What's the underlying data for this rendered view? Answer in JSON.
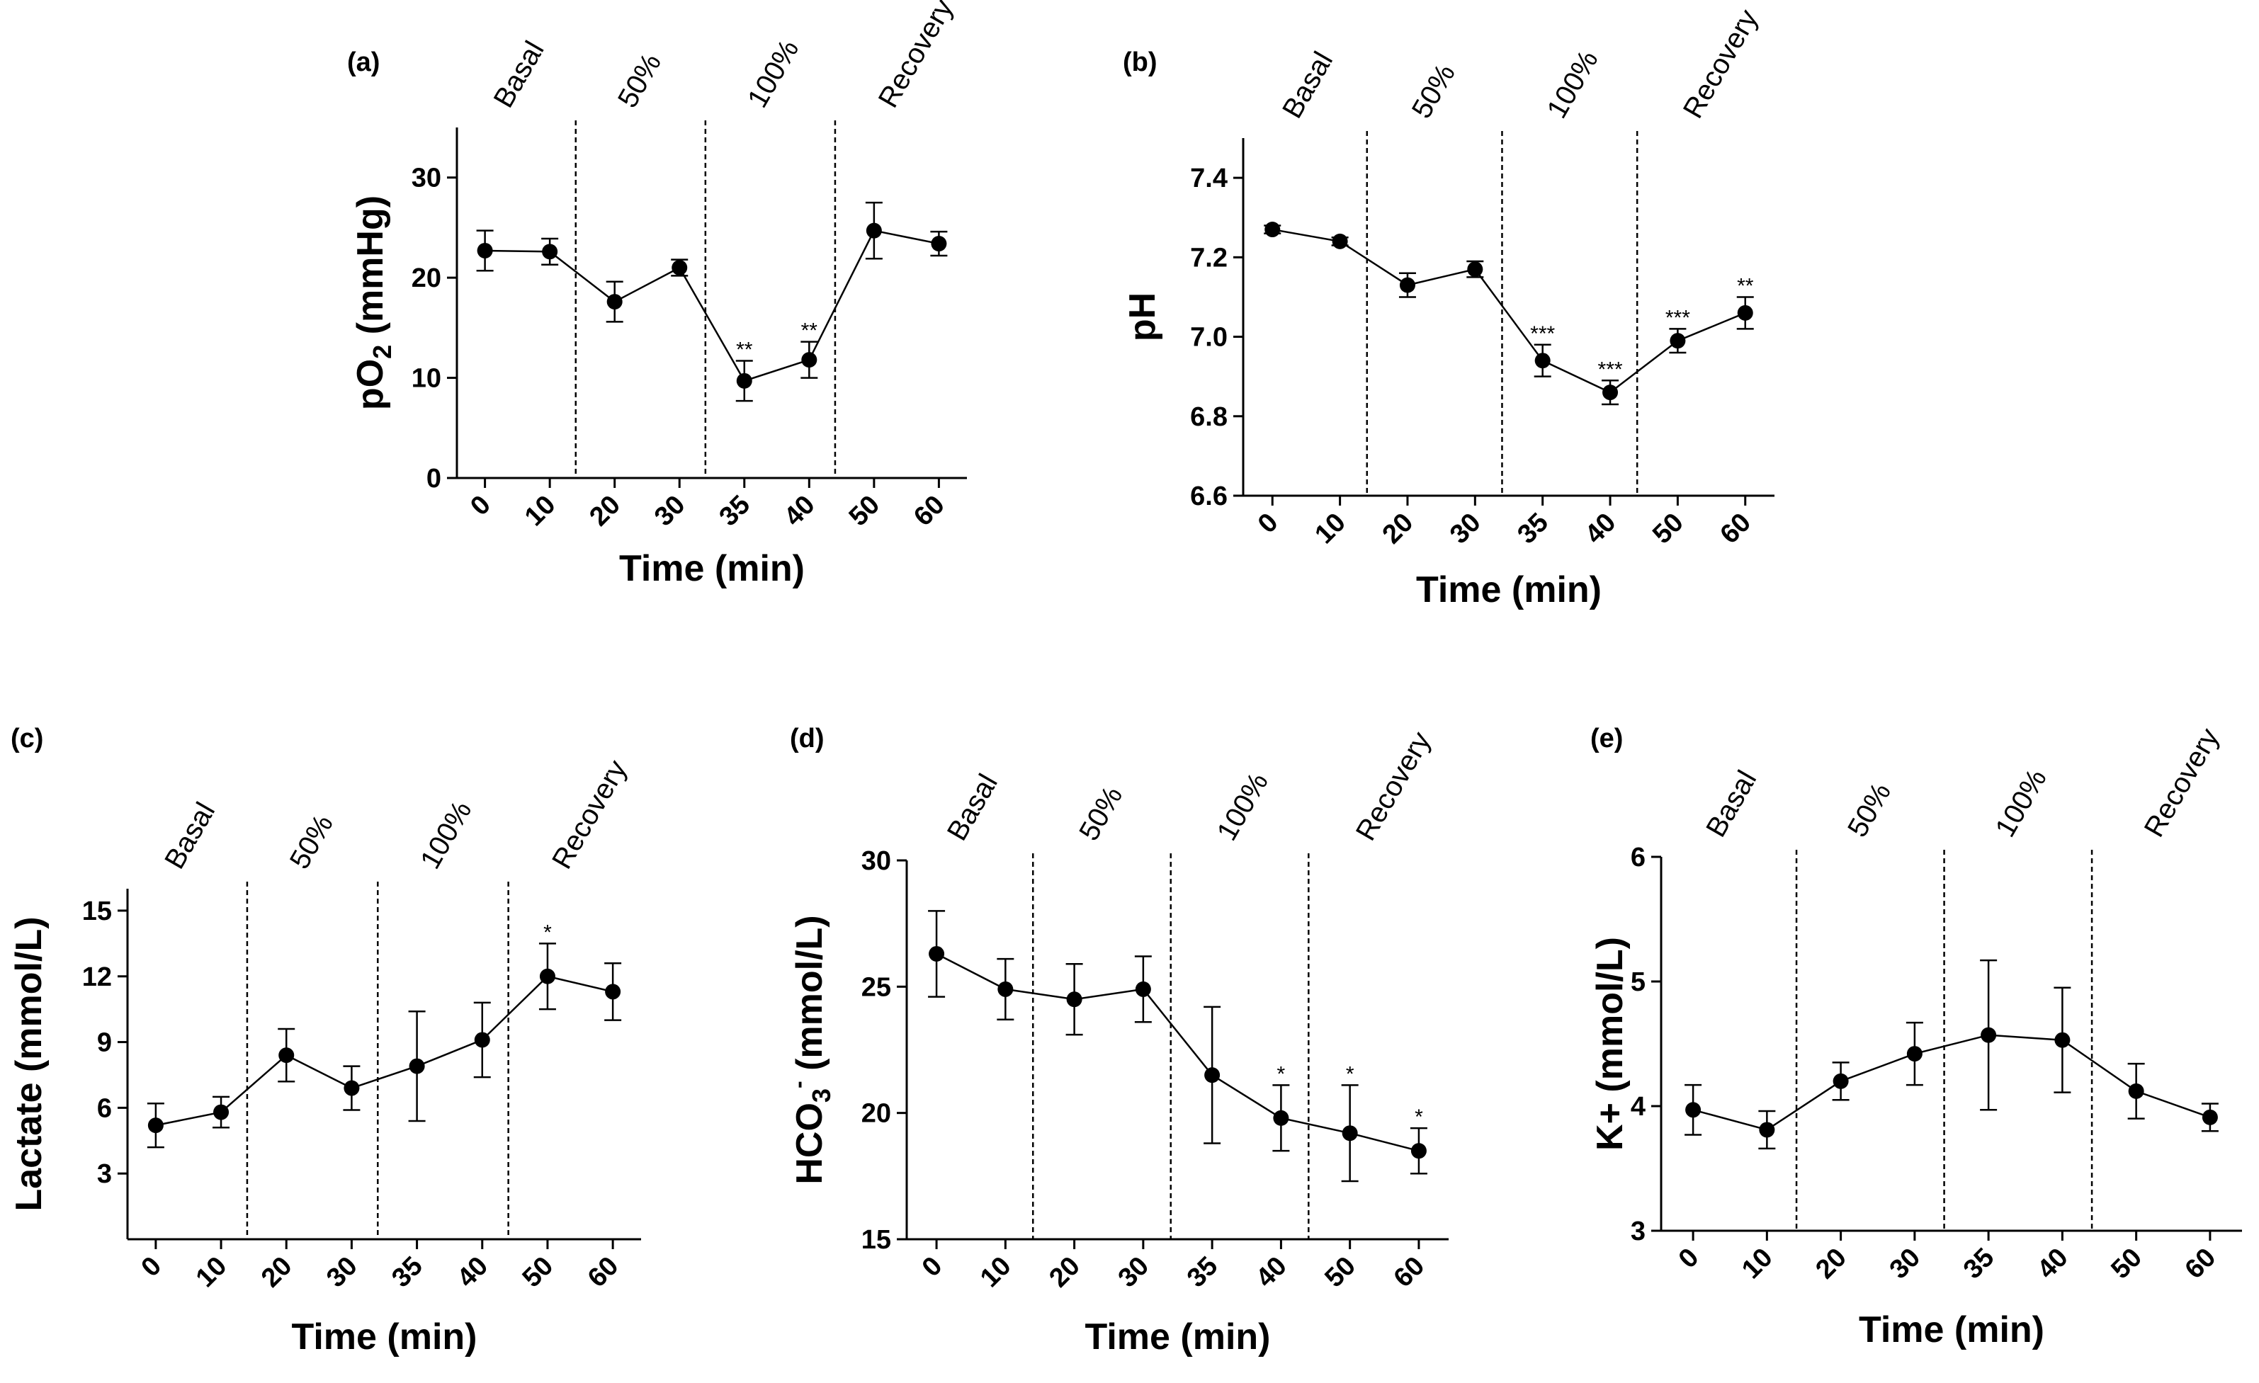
{
  "chart_data": [
    {
      "id": "a",
      "type": "line",
      "panel_label": "(a)",
      "title": "",
      "xlabel": "Time (min)",
      "ylabel_main": "pO",
      "ylabel_sub": "2",
      "ylabel_rest": " (mmHg)",
      "ylim": [
        0,
        35
      ],
      "yticks": [
        0,
        10,
        20,
        30
      ],
      "categories": [
        "0",
        "10",
        "20",
        "30",
        "35",
        "40",
        "50",
        "60"
      ],
      "values": [
        22.7,
        22.6,
        17.6,
        21.0,
        9.7,
        11.8,
        24.7,
        23.4
      ],
      "errors": [
        2.0,
        1.3,
        2.0,
        0.8,
        2.0,
        1.8,
        2.8,
        1.2
      ],
      "significance": [
        "",
        "",
        "",
        "",
        "**",
        "**",
        "",
        ""
      ],
      "phases": [
        "Basal",
        "50%",
        "100%",
        "Recovery"
      ],
      "grid": false
    },
    {
      "id": "b",
      "type": "line",
      "panel_label": "(b)",
      "title": "",
      "xlabel": "Time (min)",
      "ylabel_main": "pH",
      "ylabel_sub": "",
      "ylabel_rest": "",
      "ylim": [
        6.6,
        7.5
      ],
      "yticks": [
        6.6,
        6.8,
        7.0,
        7.2,
        7.4
      ],
      "categories": [
        "0",
        "10",
        "20",
        "30",
        "35",
        "40",
        "50",
        "60"
      ],
      "values": [
        7.27,
        7.24,
        7.13,
        7.17,
        6.94,
        6.86,
        6.99,
        7.06
      ],
      "errors": [
        0.01,
        0.01,
        0.03,
        0.02,
        0.04,
        0.03,
        0.03,
        0.04
      ],
      "significance": [
        "",
        "",
        "",
        "",
        "***",
        "***",
        "***",
        "**"
      ],
      "phases": [
        "Basal",
        "50%",
        "100%",
        "Recovery"
      ],
      "grid": false
    },
    {
      "id": "c",
      "type": "line",
      "panel_label": "(c)",
      "title": "",
      "xlabel": "Time (min)",
      "ylabel_main": "Lactate (mmol/L)",
      "ylabel_sub": "",
      "ylabel_rest": "",
      "ylim": [
        0,
        16
      ],
      "yticks": [
        3,
        6,
        9,
        12,
        15
      ],
      "categories": [
        "0",
        "10",
        "20",
        "30",
        "35",
        "40",
        "50",
        "60"
      ],
      "values": [
        5.2,
        5.8,
        8.4,
        6.9,
        7.9,
        9.1,
        12.0,
        11.3
      ],
      "errors": [
        1.0,
        0.7,
        1.2,
        1.0,
        2.5,
        1.7,
        1.5,
        1.3
      ],
      "significance": [
        "",
        "",
        "",
        "",
        "",
        "",
        "*",
        ""
      ],
      "phases": [
        "Basal",
        "50%",
        "100%",
        "Recovery"
      ],
      "grid": false
    },
    {
      "id": "d",
      "type": "line",
      "panel_label": "(d)",
      "title": "",
      "xlabel": "Time (min)",
      "ylabel_main": "HCO",
      "ylabel_sub": "3",
      "ylabel_sup": "-",
      "ylabel_rest": " (mmol/L)",
      "ylim": [
        15,
        30
      ],
      "yticks": [
        15,
        20,
        25,
        30
      ],
      "categories": [
        "0",
        "10",
        "20",
        "30",
        "35",
        "40",
        "50",
        "60"
      ],
      "values": [
        26.3,
        24.9,
        24.5,
        24.9,
        21.5,
        19.8,
        19.2,
        18.5
      ],
      "errors": [
        1.7,
        1.2,
        1.4,
        1.3,
        2.7,
        1.3,
        1.9,
        0.9
      ],
      "significance": [
        "",
        "",
        "",
        "",
        "",
        "*",
        "*",
        "*"
      ],
      "phases": [
        "Basal",
        "50%",
        "100%",
        "Recovery"
      ],
      "grid": false
    },
    {
      "id": "e",
      "type": "line",
      "panel_label": "(e)",
      "title": "",
      "xlabel": "Time (min)",
      "ylabel_main": "K+ (mmol/L)",
      "ylabel_sub": "",
      "ylabel_rest": "",
      "ylim": [
        3,
        6
      ],
      "yticks": [
        3,
        4,
        5,
        6
      ],
      "categories": [
        "0",
        "10",
        "20",
        "30",
        "35",
        "40",
        "50",
        "60"
      ],
      "values": [
        3.97,
        3.81,
        4.2,
        4.42,
        4.57,
        4.53,
        4.12,
        3.91
      ],
      "errors": [
        0.2,
        0.15,
        0.15,
        0.25,
        0.6,
        0.42,
        0.22,
        0.11
      ],
      "significance": [
        "",
        "",
        "",
        "",
        "",
        "",
        "",
        ""
      ],
      "phases": [
        "Basal",
        "50%",
        "100%",
        "Recovery"
      ],
      "grid": false
    }
  ]
}
